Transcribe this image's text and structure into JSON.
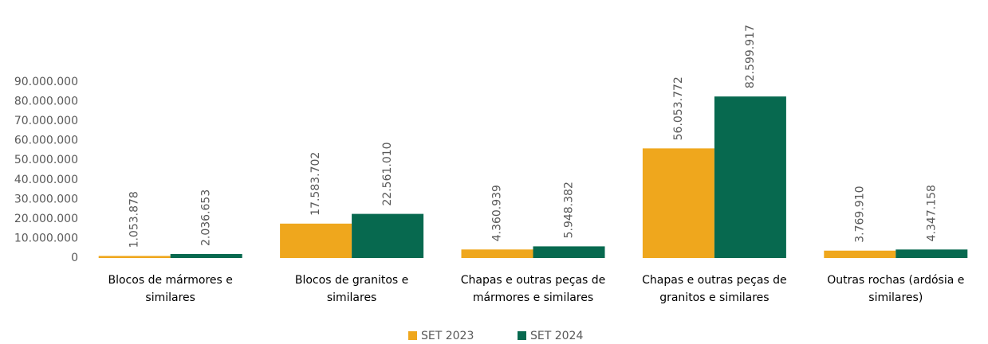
{
  "chart_data": {
    "type": "bar",
    "categories": [
      "Blocos de mármores e similares",
      "Blocos de granitos e similares",
      "Chapas e outras peças de mármores e similares",
      "Chapas e outras peças de granitos e similares",
      "Outras rochas (ardósia e similares)"
    ],
    "series": [
      {
        "name": "SET 2023",
        "color": "#EFA71D",
        "values": [
          1053878,
          17583702,
          4360939,
          56053772,
          3769910
        ],
        "value_labels": [
          "1.053.878",
          "17.583.702",
          "4.360.939",
          "56.053.772",
          "3.769.910"
        ]
      },
      {
        "name": "SET 2024",
        "color": "#07694F",
        "values": [
          2036653,
          22561010,
          5948382,
          82599917,
          4347158
        ],
        "value_labels": [
          "2.036.653",
          "22.561.010",
          "5.948.382",
          "82.599.917",
          "4.347.158"
        ]
      }
    ],
    "ylim": [
      0,
      90000000
    ],
    "yticks": [
      0,
      {
        "value": 10000000,
        "label": "10.000.000"
      },
      {
        "value": 20000000,
        "label": "20.000.000"
      },
      {
        "value": 30000000,
        "label": "30.000.000"
      },
      {
        "value": 40000000,
        "label": "40.000.000"
      },
      {
        "value": 50000000,
        "label": "50.000.000"
      },
      {
        "value": 60000000,
        "label": "60.000.000"
      },
      {
        "value": 70000000,
        "label": "70.000.000"
      },
      {
        "value": 80000000,
        "label": "80.000.000"
      },
      {
        "value": 90000000,
        "label": "90.000.000"
      }
    ],
    "grid": false,
    "legend": "bottom"
  }
}
